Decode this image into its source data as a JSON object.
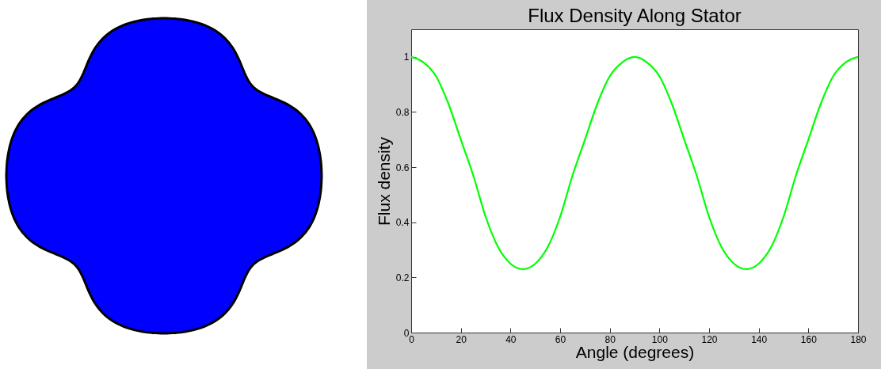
{
  "chart_data": {
    "type": "line",
    "title": "Flux Density Along Stator",
    "xlabel": "Angle (degrees)",
    "ylabel": "Flux density",
    "x": [
      0,
      5,
      10,
      15,
      20,
      25,
      30,
      35,
      40,
      45,
      50,
      55,
      60,
      65,
      70,
      75,
      80,
      85,
      90,
      95,
      100,
      105,
      110,
      115,
      120,
      125,
      130,
      135,
      140,
      145,
      150,
      155,
      160,
      165,
      170,
      175,
      180
    ],
    "series": [
      {
        "color": "#00ff00",
        "values": [
          1.0,
          0.98,
          0.93,
          0.83,
          0.7,
          0.57,
          0.42,
          0.31,
          0.25,
          0.23,
          0.25,
          0.31,
          0.42,
          0.57,
          0.7,
          0.83,
          0.93,
          0.98,
          1.0,
          0.98,
          0.93,
          0.83,
          0.7,
          0.57,
          0.42,
          0.31,
          0.25,
          0.23,
          0.25,
          0.31,
          0.42,
          0.57,
          0.7,
          0.83,
          0.93,
          0.98,
          1.0
        ]
      }
    ],
    "xlim": [
      0,
      180
    ],
    "xticks": [
      0,
      20,
      40,
      60,
      80,
      100,
      120,
      140,
      160,
      180
    ],
    "ylim": [
      0,
      1.1
    ],
    "yticks": [
      0,
      0.2,
      0.4,
      0.6,
      0.8,
      1
    ],
    "grid": false,
    "legend": false,
    "marker": "none",
    "line_style": "solid"
  }
}
